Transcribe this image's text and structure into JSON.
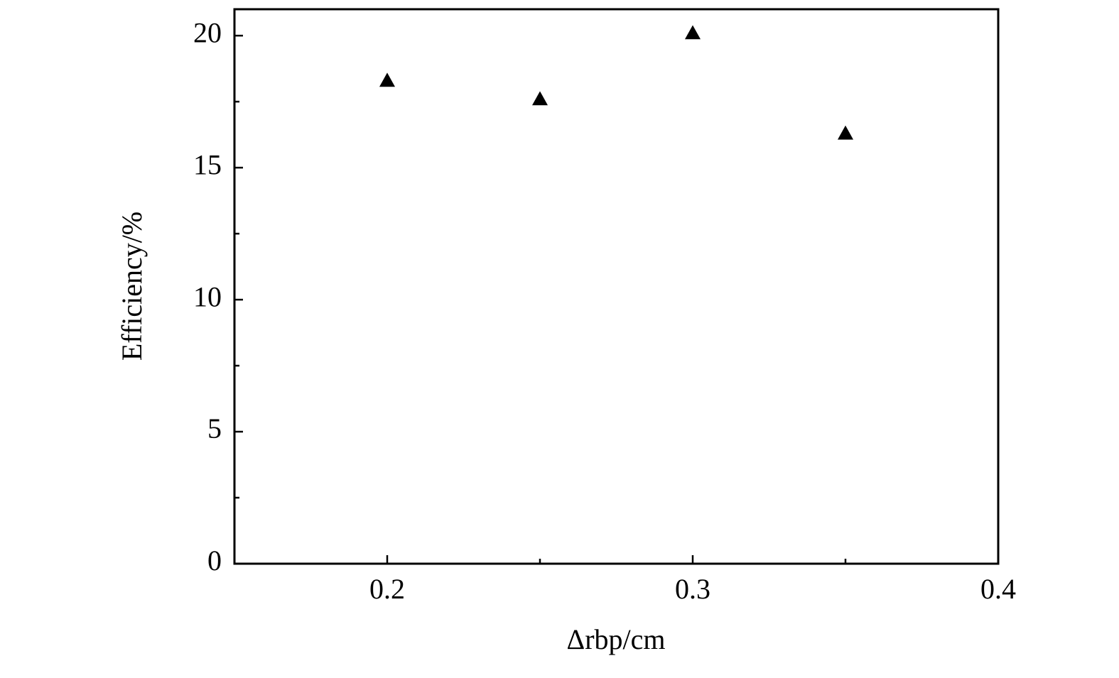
{
  "chart_data": {
    "type": "scatter",
    "xlabel": "Δrbp/cm",
    "ylabel": "Efficiency/%",
    "x": [
      0.2,
      0.25,
      0.3,
      0.35
    ],
    "values": [
      18.3,
      17.6,
      20.1,
      16.3
    ],
    "color": "#000000",
    "marker": "triangle",
    "xlim": [
      0.15,
      0.4
    ],
    "xticks": [
      0.2,
      0.3,
      0.4
    ],
    "xminorticks": [
      0.25,
      0.35
    ],
    "ylim": [
      0,
      21
    ],
    "yticks": [
      0,
      5,
      10,
      15,
      20
    ],
    "yminorticks": [
      2.5,
      7.5,
      12.5,
      17.5
    ],
    "grid": false
  }
}
